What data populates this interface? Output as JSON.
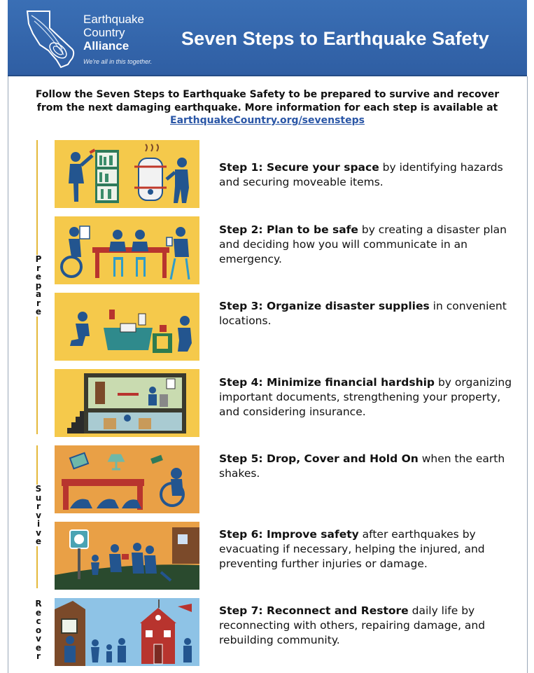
{
  "header": {
    "logo_lines": [
      "Earthquake",
      "Country",
      "Alliance"
    ],
    "tagline": "We're all in this together.",
    "title": "Seven Steps to Earthquake Safety"
  },
  "intro": {
    "line1": "Follow the Seven Steps to Earthquake Safety to be prepared to survive and recover",
    "line2": "from the next damaging earthquake. More information for each step is available at",
    "link": "EarthquakeCountry.org/sevensteps"
  },
  "phases": {
    "prepare": [
      "P",
      "r",
      "e",
      "p",
      "a",
      "r",
      "e"
    ],
    "survive": [
      "S",
      "u",
      "r",
      "v",
      "i",
      "v",
      "e"
    ],
    "recover": [
      "R",
      "e",
      "c",
      "o",
      "v",
      "e",
      "r"
    ]
  },
  "steps": [
    {
      "bold": "Step 1: Secure your space",
      "rest": " by identifying hazards and securing moveable items."
    },
    {
      "bold": "Step 2: Plan to be safe",
      "rest": " by creating a disaster plan and deciding how you will communicate in an emergency."
    },
    {
      "bold": "Step 3: Organize disaster supplies",
      "rest": " in convenient locations."
    },
    {
      "bold": "Step 4: Minimize financial hardship",
      "rest": " by organizing important documents, strengthening your property, and considering insurance."
    },
    {
      "bold": "Step 5: Drop, Cover and Hold On",
      "rest": " when the earth shakes."
    },
    {
      "bold": "Step 6: Improve safety",
      "rest": " after earthquakes by evacuating if necessary, helping the injured, and preventing further injuries or damage."
    },
    {
      "bold": "Step 7: Reconnect and Restore",
      "rest": " daily life by reconnecting with others, repairing damage, and rebuilding community."
    }
  ],
  "colors": {
    "header_blue": "#3a6fb5",
    "panel_yellow": "#f5c94b",
    "panel_orange": "#e9a046",
    "panel_sky": "#8ec3e6",
    "figure_blue": "#23558f",
    "link_blue": "#2a56a6",
    "phase_line": "#e5b93b"
  }
}
